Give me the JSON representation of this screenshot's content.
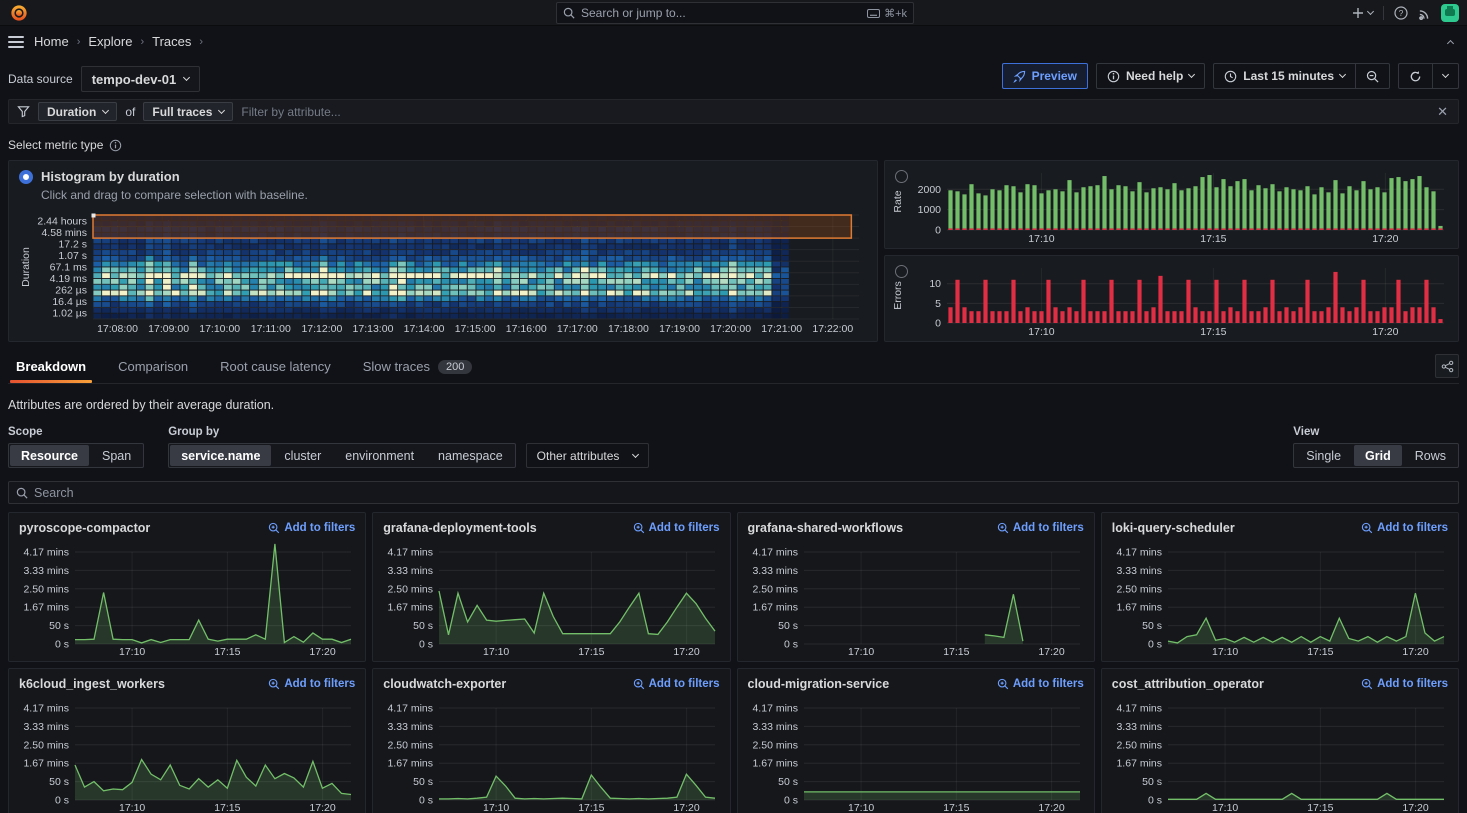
{
  "topnav": {
    "search_placeholder": "Search or jump to...",
    "shortcut": "⌘+k"
  },
  "breadcrumb": {
    "items": [
      "Home",
      "Explore",
      "Traces"
    ]
  },
  "toolbar": {
    "datasource_label": "Data source",
    "datasource_value": "tempo-dev-01",
    "preview": "Preview",
    "need_help": "Need help",
    "time_range": "Last 15 minutes"
  },
  "filterbar": {
    "duration": "Duration",
    "of": "of",
    "full_traces": "Full traces",
    "placeholder": "Filter by attribute..."
  },
  "metric": {
    "label": "Select metric type",
    "radio_label": "Histogram by duration",
    "radio_sub": "Click and drag to compare selection with baseline."
  },
  "tabs": [
    {
      "label": "Breakdown",
      "active": true
    },
    {
      "label": "Comparison",
      "active": false
    },
    {
      "label": "Root cause latency",
      "active": false
    },
    {
      "label": "Slow traces",
      "active": false,
      "badge": "200"
    }
  ],
  "note": "Attributes are ordered by their average duration.",
  "controls": {
    "scope": {
      "label": "Scope",
      "options": [
        "Resource",
        "Span"
      ],
      "selected": "Resource"
    },
    "groupby": {
      "label": "Group by",
      "options": [
        "service.name",
        "cluster",
        "environment",
        "namespace"
      ],
      "selected": "service.name"
    },
    "other_attributes": "Other attributes",
    "view": {
      "label": "View",
      "options": [
        "Single",
        "Grid",
        "Rows"
      ],
      "selected": "Grid"
    }
  },
  "search": {
    "placeholder": "Search"
  },
  "panels": {
    "add_to_filters": "Add to filters"
  },
  "colors": {
    "accent_blue": "#3d71d9",
    "link_blue": "#6e9fff",
    "green": "#73bf69",
    "red": "#e02f44",
    "orange_selection": "#df7a33",
    "tab_orange": "#e55230"
  },
  "icons": [
    "grafana-logo-icon",
    "search-icon",
    "keyboard-icon",
    "plus-icon",
    "chevron-down-icon",
    "help-icon",
    "rss-icon",
    "avatar",
    "menu-icon",
    "chevron-up-icon",
    "funnel-icon",
    "info-icon",
    "rocket-icon",
    "clock-icon",
    "zoom-out-icon",
    "refresh-icon",
    "close-icon",
    "share-icon",
    "search-plus-icon"
  ],
  "service_axis": {
    "ymax": 250,
    "ylabels": [
      {
        "v": 250,
        "t": "4.17 mins"
      },
      {
        "v": 200,
        "t": "3.33 mins"
      },
      {
        "v": 150,
        "t": "2.50 mins"
      },
      {
        "v": 100,
        "t": "1.67 mins"
      },
      {
        "v": 50,
        "t": "50 s"
      },
      {
        "v": 0,
        "t": "0 s"
      }
    ],
    "xticks": [
      {
        "f": 0.207,
        "t": "17:10"
      },
      {
        "f": 0.552,
        "t": "17:15"
      },
      {
        "f": 0.897,
        "t": "17:20"
      }
    ]
  },
  "chart_data": [
    {
      "type": "heatmap",
      "id": "duration-histogram",
      "ylabel": "Duration",
      "ylabels": [
        "2.44 hours",
        "4.58 mins",
        "17.2 s",
        "1.07 s",
        "67.1 ms",
        "4.19 ms",
        "262 µs",
        "16.4 µs",
        "1.02 µs"
      ],
      "xticks": [
        {
          "f": 0.032,
          "t": "17:08:00"
        },
        {
          "f": 0.0987,
          "t": "17:09:00"
        },
        {
          "f": 0.1654,
          "t": "17:10:00"
        },
        {
          "f": 0.2321,
          "t": "17:11:00"
        },
        {
          "f": 0.2988,
          "t": "17:12:00"
        },
        {
          "f": 0.3655,
          "t": "17:13:00"
        },
        {
          "f": 0.4322,
          "t": "17:14:00"
        },
        {
          "f": 0.4989,
          "t": "17:15:00"
        },
        {
          "f": 0.5656,
          "t": "17:16:00"
        },
        {
          "f": 0.6323,
          "t": "17:17:00"
        },
        {
          "f": 0.699,
          "t": "17:18:00"
        },
        {
          "f": 0.7657,
          "t": "17:19:00"
        },
        {
          "f": 0.8324,
          "t": "17:20:00"
        },
        {
          "f": 0.8991,
          "t": "17:21:00"
        },
        {
          "f": 0.9658,
          "t": "17:22:00"
        }
      ],
      "rows": 18,
      "cols": 88,
      "data_cols": 78,
      "row_intensity": [
        0.2,
        0.5,
        0.9,
        0.7,
        2.2,
        1.8,
        2.4,
        3.2,
        4.8,
        6.2,
        9.3,
        6.8,
        6.2,
        8.2,
        4.2,
        2.6,
        1.6,
        1.0
      ],
      "selection": {
        "x0": 0.0,
        "x1": 0.99,
        "row_span": 4
      }
    },
    {
      "type": "bar",
      "id": "rate",
      "ylabel": "Rate",
      "color": "#73bf69",
      "ymax": 2800,
      "base_stub": true,
      "yticks": [
        {
          "v": 0,
          "t": "0"
        },
        {
          "v": 1000,
          "t": "1000"
        },
        {
          "v": 2000,
          "t": "2000"
        }
      ],
      "xticks": [
        {
          "f": 0.19,
          "t": "17:10"
        },
        {
          "f": 0.536,
          "t": "17:15"
        },
        {
          "f": 0.882,
          "t": "17:20"
        }
      ],
      "values": [
        1950,
        1900,
        1750,
        2250,
        1800,
        1700,
        2000,
        1950,
        2200,
        2150,
        1850,
        2250,
        2200,
        1800,
        1950,
        2000,
        1900,
        2450,
        1850,
        2100,
        2150,
        2200,
        2650,
        2000,
        2200,
        2150,
        1900,
        2350,
        1850,
        2050,
        2100,
        2000,
        2300,
        1950,
        2050,
        2150,
        2600,
        2700,
        2100,
        2500,
        2150,
        2400,
        2500,
        1950,
        2200,
        2050,
        2250,
        1900,
        2100,
        2000,
        1950,
        2150,
        1750,
        2100,
        1850,
        2450,
        1800,
        2150,
        1950,
        2400,
        2000,
        2100,
        1850,
        2550,
        2600,
        2400,
        2500,
        2650,
        2100,
        1900,
        200
      ]
    },
    {
      "type": "bar",
      "id": "errors",
      "ylabel": "Errors",
      "color": "#e02f44",
      "ymax": 14,
      "base_stub": false,
      "yticks": [
        {
          "v": 0,
          "t": "0"
        },
        {
          "v": 5,
          "t": "5"
        },
        {
          "v": 10,
          "t": "10"
        }
      ],
      "xticks": [
        {
          "f": 0.19,
          "t": "17:10"
        },
        {
          "f": 0.536,
          "t": "17:15"
        },
        {
          "f": 0.882,
          "t": "17:20"
        }
      ],
      "values": [
        4,
        11,
        4,
        3,
        3,
        11,
        3,
        3,
        3,
        11,
        3,
        4,
        3,
        3,
        11,
        4,
        3,
        4,
        3,
        11,
        3,
        3,
        3,
        11,
        3,
        3,
        3,
        11,
        3,
        4,
        12,
        3,
        3,
        3,
        11,
        4,
        3,
        3,
        11,
        3,
        4,
        3,
        11,
        3,
        3,
        4,
        11,
        3,
        4,
        3,
        4,
        11,
        3,
        3,
        4,
        13,
        4,
        3,
        4,
        11,
        3,
        3,
        4,
        4,
        11,
        3,
        4,
        4,
        11,
        4,
        1
      ]
    },
    {
      "type": "area",
      "name": "pyroscope-compactor",
      "values": [
        12,
        12,
        13,
        140,
        13,
        12,
        12,
        3,
        12,
        4,
        12,
        12,
        12,
        65,
        13,
        8,
        13,
        13,
        13,
        25,
        13,
        272,
        4,
        20,
        5,
        30,
        13,
        13,
        4,
        13
      ]
    },
    {
      "type": "area",
      "name": "grafana-deployment-tools",
      "values": [
        144,
        25,
        138,
        60,
        105,
        65,
        62,
        64,
        66,
        68,
        30,
        138,
        75,
        28,
        28,
        28,
        28,
        28,
        28,
        60,
        100,
        138,
        28,
        26,
        60,
        100,
        138,
        110,
        70,
        35
      ]
    },
    {
      "type": "area",
      "name": "grafana-shared-workflows",
      "values": [
        null,
        null,
        null,
        null,
        null,
        null,
        null,
        null,
        null,
        null,
        null,
        null,
        null,
        null,
        null,
        null,
        null,
        null,
        null,
        25,
        22,
        18,
        135,
        8,
        null,
        null,
        null,
        null,
        null,
        null
      ]
    },
    {
      "type": "area",
      "name": "loki-query-scheduler",
      "values": [
        8,
        3,
        20,
        25,
        70,
        10,
        15,
        5,
        18,
        5,
        18,
        5,
        18,
        5,
        20,
        5,
        20,
        8,
        70,
        15,
        8,
        20,
        5,
        20,
        8,
        20,
        138,
        30,
        8,
        20
      ]
    },
    {
      "type": "area",
      "name": "k6cloud_ingest_workers",
      "values": [
        95,
        35,
        50,
        25,
        30,
        28,
        48,
        110,
        70,
        55,
        95,
        40,
        30,
        58,
        35,
        55,
        32,
        108,
        62,
        38,
        95,
        58,
        72,
        60,
        35,
        105,
        32,
        45,
        18,
        15
      ]
    },
    {
      "type": "area",
      "name": "cloudwatch-exporter",
      "values": [
        3,
        3,
        4,
        3,
        5,
        8,
        65,
        38,
        5,
        3,
        4,
        3,
        4,
        5,
        4,
        3,
        68,
        35,
        5,
        4,
        3,
        4,
        3,
        4,
        5,
        8,
        70,
        40,
        8,
        5
      ]
    },
    {
      "type": "area",
      "name": "cloud-migration-service",
      "values": [
        22,
        22,
        22,
        22,
        22,
        22,
        22,
        22,
        22,
        22,
        22,
        22,
        22,
        22,
        22,
        22,
        22,
        22,
        22,
        22,
        22,
        22,
        22,
        22,
        22,
        22,
        22,
        22,
        22,
        22
      ]
    },
    {
      "type": "area",
      "name": "cost_attribution_operator",
      "values": [
        2,
        2,
        2,
        2,
        18,
        2,
        2,
        2,
        2,
        2,
        2,
        2,
        2,
        18,
        2,
        2,
        2,
        2,
        2,
        2,
        2,
        2,
        2,
        18,
        2,
        2,
        2,
        2,
        2,
        2
      ]
    }
  ]
}
